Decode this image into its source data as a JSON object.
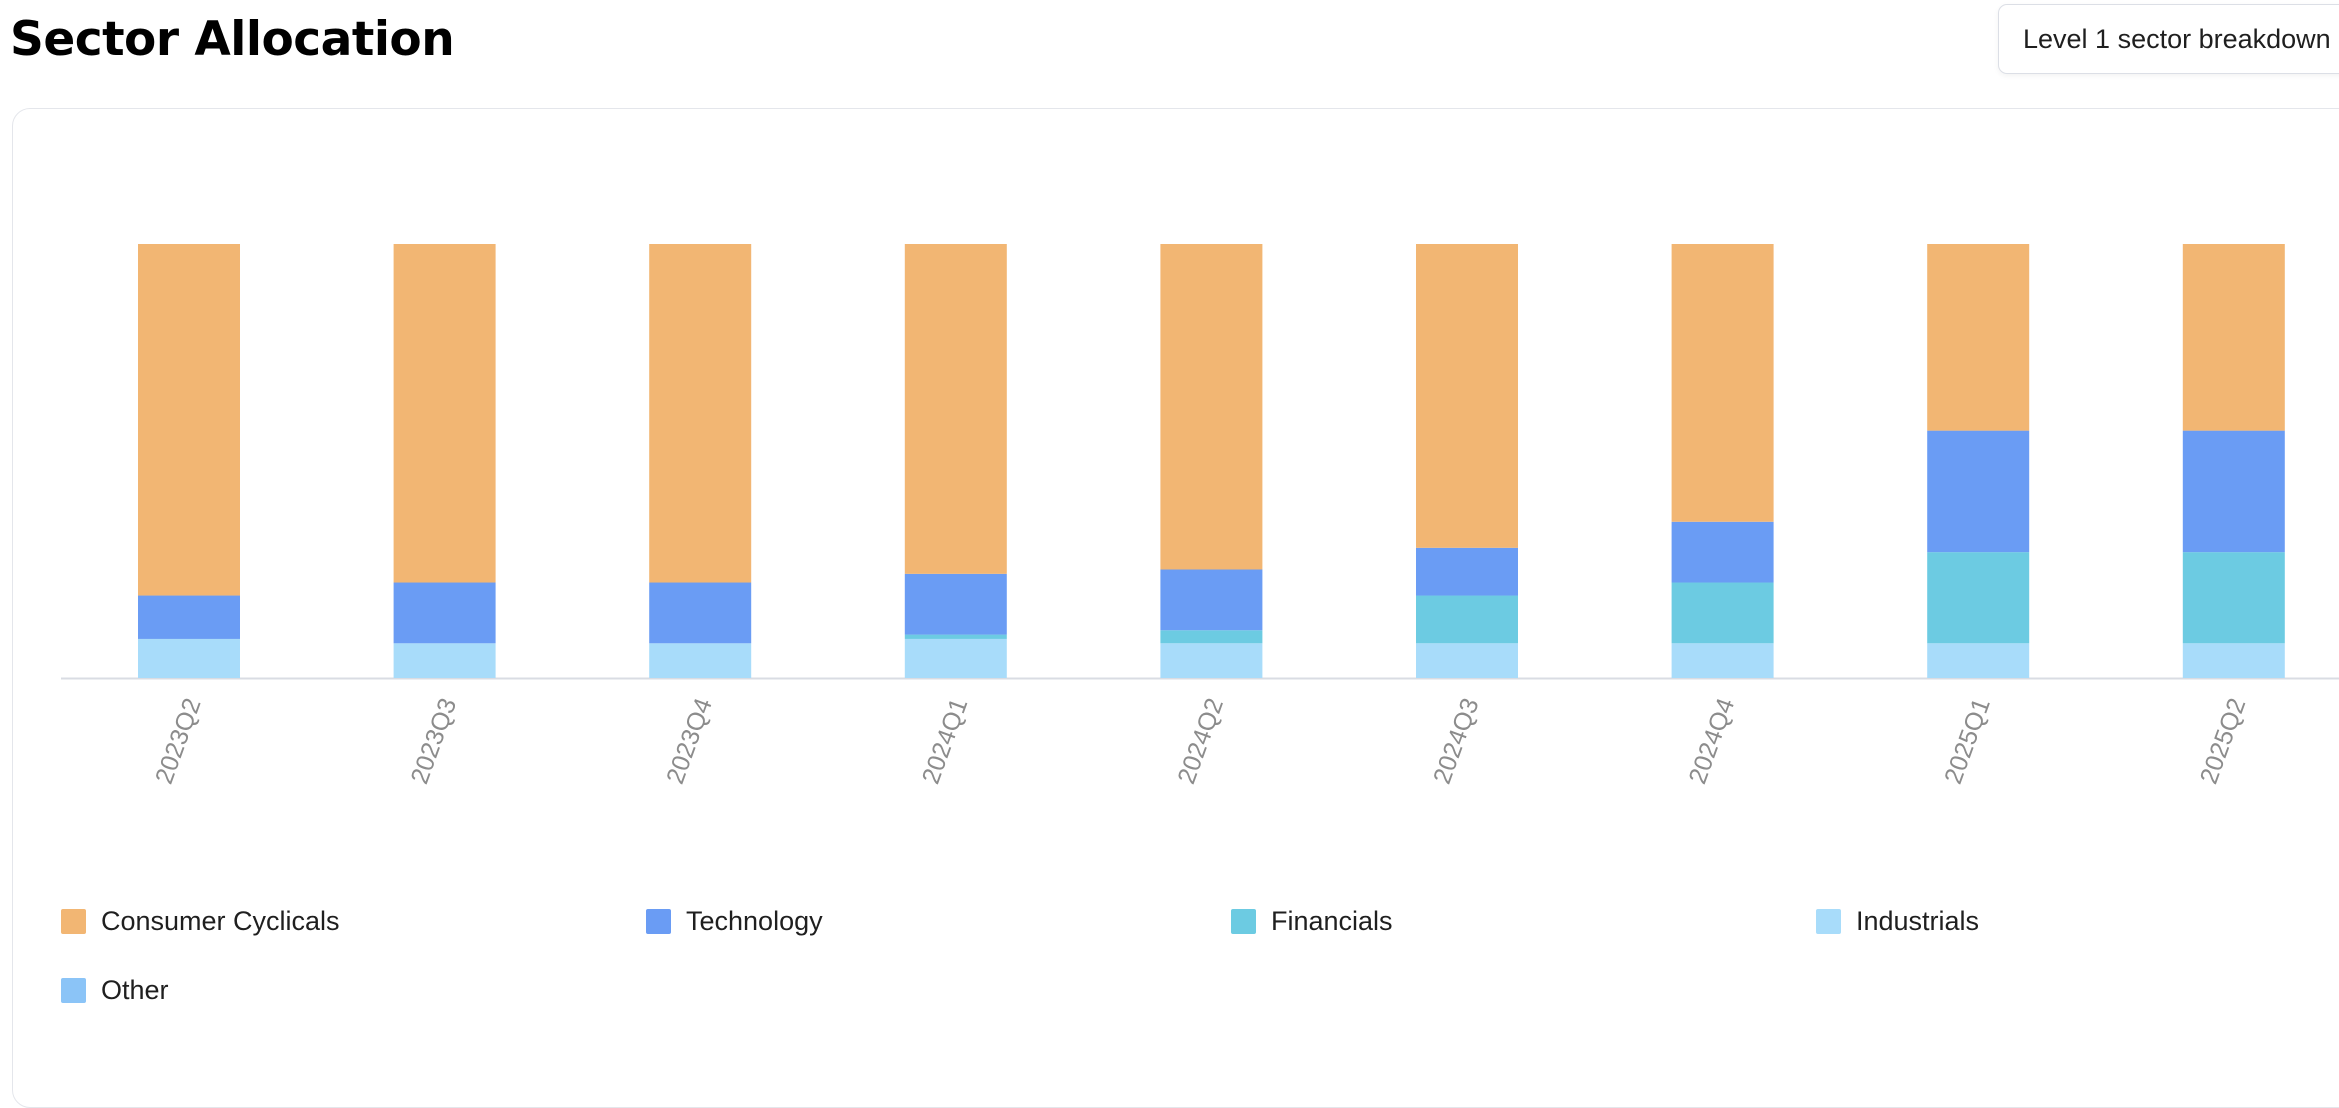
{
  "header": {
    "title": "Sector Allocation",
    "breakdown_select_value": "Level 1 sector breakdown"
  },
  "chart_data": {
    "type": "bar",
    "stacked": true,
    "categories": [
      "2023Q2",
      "2023Q3",
      "2023Q4",
      "2024Q1",
      "2024Q2",
      "2024Q3",
      "2024Q4",
      "2025Q1",
      "2025Q2"
    ],
    "series": [
      {
        "name": "Industrials",
        "color": "#a8dcfa",
        "values": [
          9,
          8,
          8,
          9,
          8,
          8,
          8,
          8,
          8
        ]
      },
      {
        "name": "Financials",
        "color": "#6ccbe2",
        "values": [
          0,
          0,
          0,
          1,
          3,
          11,
          14,
          21,
          21
        ]
      },
      {
        "name": "Technology",
        "color": "#6a9cf4",
        "values": [
          10,
          14,
          14,
          14,
          14,
          11,
          14,
          28,
          28
        ]
      },
      {
        "name": "Consumer Cyclicals",
        "color": "#f2b673",
        "values": [
          81,
          78,
          78,
          76,
          75,
          70,
          64,
          43,
          43
        ]
      },
      {
        "name": "Other",
        "color": "#8bc4f7",
        "values": [
          0,
          0,
          0,
          0,
          0,
          0,
          0,
          0,
          0
        ]
      }
    ],
    "ylim": [
      0,
      100
    ],
    "grid": false,
    "legend": {
      "position": "bottom",
      "order": [
        "Consumer Cyclicals",
        "Technology",
        "Financials",
        "Industrials",
        "Other"
      ]
    }
  }
}
